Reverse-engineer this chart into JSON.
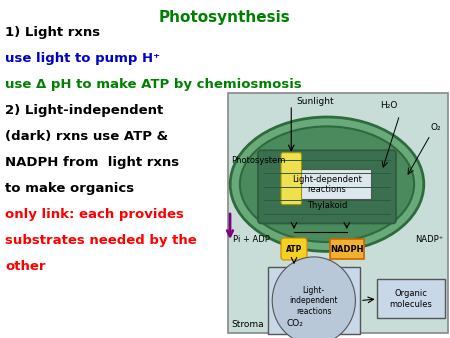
{
  "background_color": "#ffffff",
  "title": "Photosynthesis",
  "title_color": "#008000",
  "title_fontsize": 11,
  "lines": [
    {
      "text": "1) Light rxns",
      "color": "#000000",
      "fontsize": 9.5,
      "bold": true
    },
    {
      "text": "use light to pump H⁺",
      "color": "#0000cc",
      "fontsize": 9.5,
      "bold": true
    },
    {
      "text": "use Δ pH to make ATP by chemiosmosis",
      "color": "#008000",
      "fontsize": 9.5,
      "bold": true
    },
    {
      "text": "2) Light-independent",
      "color": "#000000",
      "fontsize": 9.5,
      "bold": true
    },
    {
      "text": "(dark) rxns use ATP &",
      "color": "#000000",
      "fontsize": 9.5,
      "bold": true
    },
    {
      "text": "NADPH from  light rxns",
      "color": "#000000",
      "fontsize": 9.5,
      "bold": true
    },
    {
      "text": "to make organics",
      "color": "#000000",
      "fontsize": 9.5,
      "bold": true
    },
    {
      "text": "only link: each provides",
      "color": "#ff0000",
      "fontsize": 9.5,
      "bold": true
    },
    {
      "text": "substrates needed by the",
      "color": "#ff0000",
      "fontsize": 9.5,
      "bold": true
    },
    {
      "text": "other",
      "color": "#ff0000",
      "fontsize": 9.5,
      "bold": true
    }
  ],
  "fig_width": 4.5,
  "fig_height": 3.38,
  "dpi": 100
}
